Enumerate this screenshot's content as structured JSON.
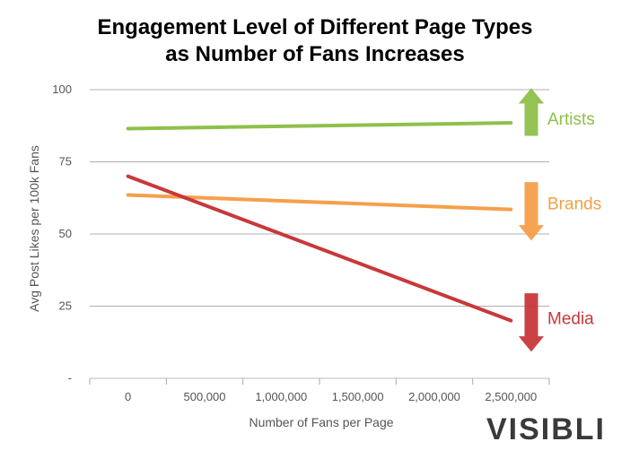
{
  "chart_data": {
    "type": "line",
    "title": [
      "Engagement Level of Different Page Types",
      "as Number of Fans Increases"
    ],
    "xlabel": "Number of Fans per Page",
    "ylabel": "Avg Post Likes per 100k Fans",
    "x_ticks": [
      0,
      500000,
      1000000,
      1500000,
      2000000,
      2500000
    ],
    "x_tick_labels": [
      "0",
      "500,000",
      "1,000,000",
      "1,500,000",
      "2,000,000",
      "2,500,000"
    ],
    "y_ticks": [
      0,
      25,
      50,
      75,
      100
    ],
    "y_tick_labels": [
      "-",
      "25",
      "50",
      "75",
      "100"
    ],
    "xlim": [
      -250000,
      2750000
    ],
    "ylim": [
      0,
      100
    ],
    "grid": "horizontal",
    "series": [
      {
        "name": "Artists",
        "color": "#8fc04a",
        "x": [
          0,
          2500000
        ],
        "y": [
          86.5,
          88.5
        ],
        "trend": "up"
      },
      {
        "name": "Brands",
        "color": "#f5a04a",
        "x": [
          0,
          2500000
        ],
        "y": [
          63.5,
          58.5
        ],
        "trend": "down"
      },
      {
        "name": "Media",
        "color": "#c8383a",
        "x": [
          0,
          2500000
        ],
        "y": [
          70,
          20
        ],
        "trend": "down"
      }
    ]
  },
  "logo_text": "VISIBLI"
}
